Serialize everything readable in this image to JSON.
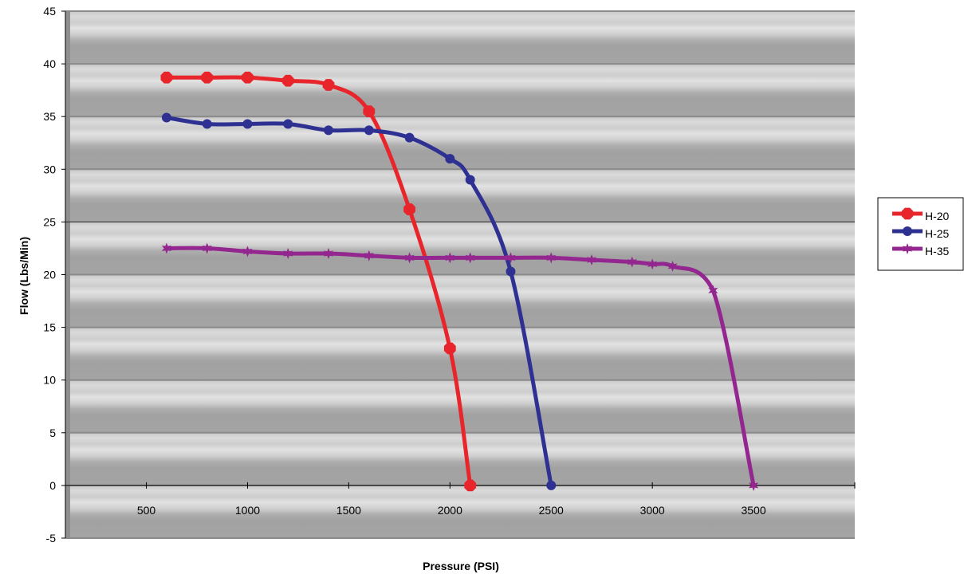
{
  "chart_data": {
    "type": "line",
    "title": "",
    "xlabel": "Pressure (PSI)",
    "ylabel": "Flow (Lbs/Min)",
    "xlim": [
      100,
      4000
    ],
    "ylim": [
      -5,
      45
    ],
    "x_ticks": [
      500,
      1000,
      1500,
      2000,
      2500,
      3000,
      3500
    ],
    "y_ticks": [
      -5,
      0,
      5,
      10,
      15,
      20,
      25,
      30,
      35,
      40,
      45
    ],
    "grid": true,
    "legend_position": "right",
    "series": [
      {
        "name": "H-20",
        "color": "#e8252b",
        "marker": "octagon",
        "x": [
          600,
          800,
          1000,
          1200,
          1400,
          1600,
          1800,
          2000,
          2100
        ],
        "y": [
          38.7,
          38.7,
          38.7,
          38.4,
          38.0,
          35.5,
          26.2,
          13.0,
          0
        ]
      },
      {
        "name": "H-25",
        "color": "#2e3192",
        "marker": "circle",
        "x": [
          600,
          800,
          1000,
          1200,
          1400,
          1600,
          1800,
          2000,
          2100,
          2300,
          2500
        ],
        "y": [
          34.9,
          34.3,
          34.3,
          34.3,
          33.7,
          33.7,
          33.0,
          31.0,
          29.0,
          20.3,
          0
        ]
      },
      {
        "name": "H-35",
        "color": "#93278f",
        "marker": "star",
        "x": [
          600,
          800,
          1000,
          1200,
          1400,
          1600,
          1800,
          2000,
          2100,
          2300,
          2500,
          2700,
          2900,
          3000,
          3100,
          3300,
          3500
        ],
        "y": [
          22.5,
          22.5,
          22.2,
          22.0,
          22.0,
          21.8,
          21.6,
          21.6,
          21.6,
          21.6,
          21.6,
          21.4,
          21.2,
          21.0,
          20.8,
          18.5,
          0
        ]
      }
    ]
  }
}
